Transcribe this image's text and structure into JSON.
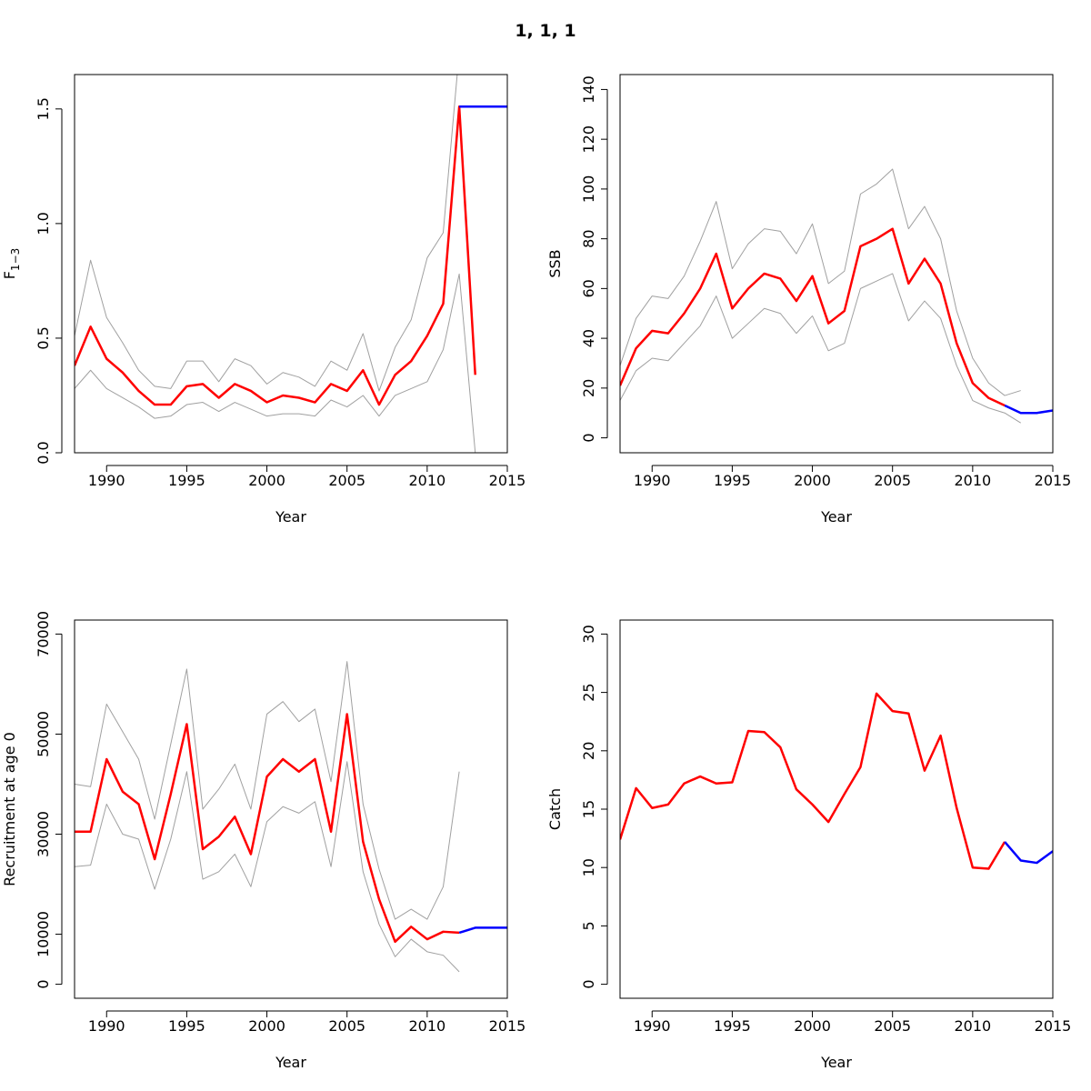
{
  "figure": {
    "title": "1, 1, 1"
  },
  "colors": {
    "estimate": "#ff0000",
    "forecast": "#0000ff",
    "ci": "#a0a0a0"
  },
  "chart_data": [
    {
      "id": "fbar",
      "type": "line",
      "xlabel": "Year",
      "ylabel": "F",
      "ylabel_sub": "1−3",
      "xlim": [
        1988,
        2015
      ],
      "ylim": [
        0,
        1.65
      ],
      "xticks": [
        1990,
        1995,
        2000,
        2005,
        2010,
        2015
      ],
      "yticks": [
        0.0,
        0.5,
        1.0,
        1.5
      ],
      "ytick_labels": [
        "0.0",
        "0.5",
        "1.0",
        "1.5"
      ],
      "series": [
        {
          "role": "estimate",
          "x": [
            1988,
            1989,
            1990,
            1991,
            1992,
            1993,
            1994,
            1995,
            1996,
            1997,
            1998,
            1999,
            2000,
            2001,
            2002,
            2003,
            2004,
            2005,
            2006,
            2007,
            2008,
            2009,
            2010,
            2011,
            2012,
            2013
          ],
          "y": [
            0.38,
            0.55,
            0.41,
            0.35,
            0.27,
            0.21,
            0.21,
            0.29,
            0.3,
            0.24,
            0.3,
            0.27,
            0.22,
            0.25,
            0.24,
            0.22,
            0.3,
            0.27,
            0.36,
            0.21,
            0.34,
            0.4,
            0.51,
            0.65,
            1.51,
            0.34
          ]
        },
        {
          "role": "upper",
          "x": [
            1988,
            1989,
            1990,
            1991,
            1992,
            1993,
            1994,
            1995,
            1996,
            1997,
            1998,
            1999,
            2000,
            2001,
            2002,
            2003,
            2004,
            2005,
            2006,
            2007,
            2008,
            2009,
            2010,
            2011,
            2012
          ],
          "y": [
            0.51,
            0.84,
            0.59,
            0.48,
            0.36,
            0.29,
            0.28,
            0.4,
            0.4,
            0.31,
            0.41,
            0.38,
            0.3,
            0.35,
            0.33,
            0.29,
            0.4,
            0.36,
            0.52,
            0.27,
            0.46,
            0.58,
            0.85,
            0.96,
            1.75
          ]
        },
        {
          "role": "lower",
          "x": [
            1988,
            1989,
            1990,
            1991,
            1992,
            1993,
            1994,
            1995,
            1996,
            1997,
            1998,
            1999,
            2000,
            2001,
            2002,
            2003,
            2004,
            2005,
            2006,
            2007,
            2008,
            2009,
            2010,
            2011,
            2012,
            2013
          ],
          "y": [
            0.28,
            0.36,
            0.28,
            0.24,
            0.2,
            0.15,
            0.16,
            0.21,
            0.22,
            0.18,
            0.22,
            0.19,
            0.16,
            0.17,
            0.17,
            0.16,
            0.23,
            0.2,
            0.25,
            0.16,
            0.25,
            0.28,
            0.31,
            0.45,
            0.78,
            0.0
          ]
        },
        {
          "role": "forecast",
          "x": [
            2012,
            2013,
            2014,
            2015
          ],
          "y": [
            1.51,
            1.51,
            1.51,
            1.51
          ]
        }
      ]
    },
    {
      "id": "ssb",
      "type": "line",
      "xlabel": "Year",
      "ylabel": "SSB",
      "xlim": [
        1988,
        2015
      ],
      "ylim": [
        -6,
        146
      ],
      "xticks": [
        1990,
        1995,
        2000,
        2005,
        2010,
        2015
      ],
      "yticks": [
        0,
        20,
        40,
        60,
        80,
        100,
        120,
        140
      ],
      "ytick_labels": [
        "0",
        "20",
        "40",
        "60",
        "80",
        "100",
        "120",
        "140"
      ],
      "series": [
        {
          "role": "estimate",
          "x": [
            1988,
            1989,
            1990,
            1991,
            1992,
            1993,
            1994,
            1995,
            1996,
            1997,
            1998,
            1999,
            2000,
            2001,
            2002,
            2003,
            2004,
            2005,
            2006,
            2007,
            2008,
            2009,
            2010,
            2011,
            2012
          ],
          "y": [
            21,
            36,
            43,
            42,
            50,
            60,
            74,
            52,
            60,
            66,
            64,
            55,
            65,
            46,
            51,
            77,
            80,
            84,
            62,
            72,
            62,
            38,
            22,
            16,
            13
          ]
        },
        {
          "role": "upper",
          "x": [
            1988,
            1989,
            1990,
            1991,
            1992,
            1993,
            1994,
            1995,
            1996,
            1997,
            1998,
            1999,
            2000,
            2001,
            2002,
            2003,
            2004,
            2005,
            2006,
            2007,
            2008,
            2009,
            2010,
            2011,
            2012,
            2013
          ],
          "y": [
            29,
            48,
            57,
            56,
            65,
            79,
            95,
            68,
            78,
            84,
            83,
            74,
            86,
            62,
            67,
            98,
            102,
            108,
            84,
            93,
            80,
            51,
            32,
            22,
            17,
            19
          ]
        },
        {
          "role": "lower",
          "x": [
            1988,
            1989,
            1990,
            1991,
            1992,
            1993,
            1994,
            1995,
            1996,
            1997,
            1998,
            1999,
            2000,
            2001,
            2002,
            2003,
            2004,
            2005,
            2006,
            2007,
            2008,
            2009,
            2010,
            2011,
            2012,
            2013
          ],
          "y": [
            15,
            27,
            32,
            31,
            38,
            45,
            57,
            40,
            46,
            52,
            50,
            42,
            49,
            35,
            38,
            60,
            63,
            66,
            47,
            55,
            48,
            29,
            15,
            12,
            10,
            6
          ]
        },
        {
          "role": "forecast",
          "x": [
            2012,
            2013,
            2014,
            2015
          ],
          "y": [
            13,
            10,
            10,
            11
          ]
        }
      ]
    },
    {
      "id": "recruitment",
      "type": "line",
      "xlabel": "Year",
      "ylabel": "Recruitment at age 0",
      "xlim": [
        1988,
        2015
      ],
      "ylim": [
        -2800,
        72800
      ],
      "xticks": [
        1990,
        1995,
        2000,
        2005,
        2010,
        2015
      ],
      "yticks": [
        0,
        10000,
        30000,
        50000,
        70000
      ],
      "ytick_labels": [
        "0",
        "10000",
        "30000",
        "50000",
        "70000"
      ],
      "series": [
        {
          "role": "estimate",
          "x": [
            1988,
            1989,
            1990,
            1991,
            1992,
            1993,
            1994,
            1995,
            1996,
            1997,
            1998,
            1999,
            2000,
            2001,
            2002,
            2003,
            2004,
            2005,
            2006,
            2007,
            2008,
            2009,
            2010,
            2011,
            2012
          ],
          "y": [
            30500,
            30500,
            45000,
            38500,
            36000,
            25000,
            38000,
            52000,
            27000,
            29500,
            33500,
            26000,
            41500,
            45000,
            42500,
            45000,
            30500,
            54000,
            28500,
            17000,
            8500,
            11500,
            9000,
            10500,
            10300
          ]
        },
        {
          "role": "upper",
          "x": [
            1988,
            1989,
            1990,
            1991,
            1992,
            1993,
            1994,
            1995,
            1996,
            1997,
            1998,
            1999,
            2000,
            2001,
            2002,
            2003,
            2004,
            2005,
            2006,
            2007,
            2008,
            2009,
            2010,
            2011,
            2012
          ],
          "y": [
            40000,
            39500,
            56000,
            50500,
            45000,
            33000,
            48000,
            63000,
            35000,
            39000,
            44000,
            35000,
            54000,
            56500,
            52500,
            55000,
            40500,
            64500,
            36000,
            23000,
            13000,
            15000,
            13000,
            19500,
            42500
          ]
        },
        {
          "role": "lower",
          "x": [
            1988,
            1989,
            1990,
            1991,
            1992,
            1993,
            1994,
            1995,
            1996,
            1997,
            1998,
            1999,
            2000,
            2001,
            2002,
            2003,
            2004,
            2005,
            2006,
            2007,
            2008,
            2009,
            2010,
            2011,
            2012
          ],
          "y": [
            23500,
            23800,
            36000,
            30000,
            29000,
            19000,
            29000,
            42500,
            21000,
            22500,
            26000,
            19500,
            32500,
            35500,
            34200,
            36500,
            23500,
            44500,
            22500,
            12000,
            5500,
            9000,
            6500,
            5800,
            2500
          ]
        },
        {
          "role": "forecast",
          "x": [
            2012,
            2013,
            2014,
            2015
          ],
          "y": [
            10300,
            11300,
            11300,
            11300
          ]
        }
      ]
    },
    {
      "id": "catch",
      "type": "line",
      "xlabel": "Year",
      "ylabel": "Catch",
      "xlim": [
        1988,
        2015
      ],
      "ylim": [
        -1.2,
        31.2
      ],
      "xticks": [
        1990,
        1995,
        2000,
        2005,
        2010,
        2015
      ],
      "yticks": [
        0,
        5,
        10,
        15,
        20,
        25,
        30
      ],
      "ytick_labels": [
        "0",
        "5",
        "10",
        "15",
        "20",
        "25",
        "30"
      ],
      "series": [
        {
          "role": "estimate",
          "x": [
            1988,
            1989,
            1990,
            1991,
            1992,
            1993,
            1994,
            1995,
            1996,
            1997,
            1998,
            1999,
            2000,
            2001,
            2002,
            2003,
            2004,
            2005,
            2006,
            2007,
            2008,
            2009,
            2010,
            2011,
            2012
          ],
          "y": [
            12.4,
            16.8,
            15.1,
            15.4,
            17.2,
            17.8,
            17.2,
            17.3,
            21.7,
            21.6,
            20.3,
            16.7,
            15.4,
            13.9,
            16.3,
            18.6,
            24.9,
            23.4,
            23.2,
            18.3,
            21.3,
            15.1,
            10.0,
            9.9,
            12.2
          ]
        },
        {
          "role": "forecast",
          "x": [
            2012,
            2013,
            2014,
            2015
          ],
          "y": [
            12.2,
            10.6,
            10.4,
            11.4
          ]
        }
      ]
    }
  ]
}
